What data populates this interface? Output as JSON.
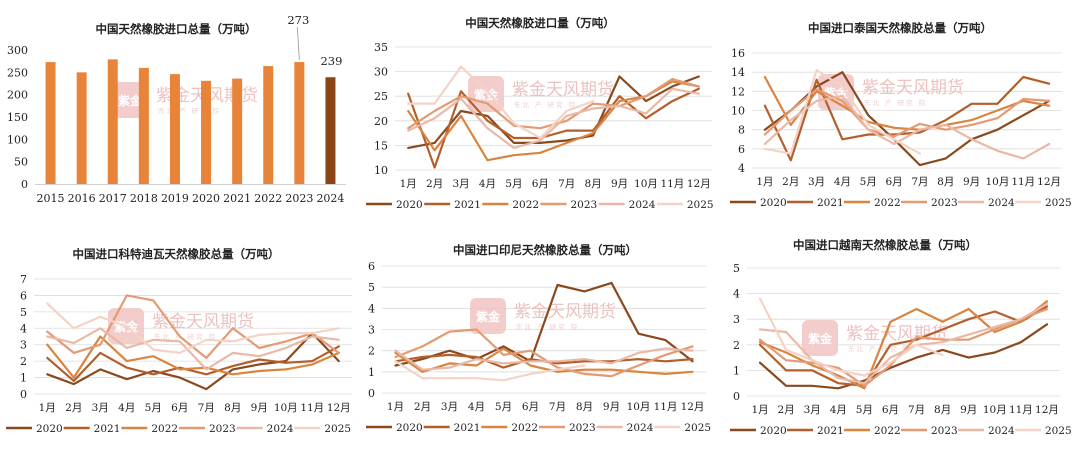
{
  "watermark": {
    "text": "紫金天风期货",
    "subtitle": "东北 产 研究 院",
    "seal": "紫金"
  },
  "months": [
    "1月",
    "2月",
    "3月",
    "4月",
    "5月",
    "6月",
    "7月",
    "8月",
    "9月",
    "10月",
    "11月",
    "12月"
  ],
  "year_colors": {
    "2020": "#8a4a1e",
    "2021": "#b45f2b",
    "2022": "#d9843f",
    "2023": "#e49a72",
    "2024": "#eab9a6",
    "2025": "#f4d3c6"
  },
  "chart_data": [
    {
      "type": "bar",
      "title": "中国天然橡胶进口总量（万吨）",
      "categories": [
        "2015",
        "2016",
        "2017",
        "2018",
        "2019",
        "2020",
        "2021",
        "2022",
        "2023",
        "2024"
      ],
      "values": [
        273,
        250,
        279,
        260,
        246,
        231,
        236,
        264,
        273,
        239
      ],
      "highlight_colors": {
        "default": "#e8833a",
        "last": "#8b4514"
      },
      "data_labels": {
        "2023": "273",
        "2024": "239"
      },
      "ylim": [
        0,
        300
      ],
      "yticks": [
        "0",
        "50",
        "100",
        "150",
        "200",
        "250",
        "300"
      ],
      "xlabel": "",
      "ylabel": "",
      "grid": false
    },
    {
      "type": "line",
      "title": "中国天然橡胶进口量（万吨）",
      "ylim": [
        10,
        35
      ],
      "yticks": [
        "10",
        "15",
        "20",
        "25",
        "30",
        "35"
      ],
      "series": [
        {
          "name": "2020",
          "values": [
            14.5,
            15.5,
            22.0,
            21.0,
            15.5,
            15.5,
            16.0,
            17.0,
            29.0,
            24.0,
            27.0,
            29.0
          ]
        },
        {
          "name": "2021",
          "values": [
            25.5,
            10.5,
            26.0,
            20.0,
            16.5,
            16.5,
            18.0,
            18.0,
            25.0,
            20.5,
            24.0,
            26.5
          ]
        },
        {
          "name": "2022",
          "values": [
            22.0,
            14.0,
            21.0,
            12.0,
            13.0,
            13.5,
            15.5,
            17.5,
            24.0,
            25.0,
            28.0,
            27.0
          ]
        },
        {
          "name": "2023",
          "values": [
            18.5,
            22.0,
            25.0,
            23.5,
            19.0,
            18.5,
            20.0,
            23.5,
            23.0,
            25.0,
            28.5,
            27.0
          ]
        },
        {
          "name": "2024",
          "values": [
            18.0,
            20.5,
            24.5,
            18.5,
            14.5,
            16.0,
            21.0,
            22.5,
            23.0,
            21.5,
            26.5,
            25.5
          ]
        },
        {
          "name": "2025",
          "values": [
            23.5,
            23.5,
            31.0,
            26.0,
            19.5,
            16.5,
            22.0,
            24.0
          ]
        }
      ]
    },
    {
      "type": "line",
      "title": "中国进口泰国天然橡胶总量（万吨）",
      "ylim": [
        4,
        16
      ],
      "yticks": [
        "4",
        "6",
        "8",
        "10",
        "12",
        "14",
        "16"
      ],
      "series": [
        {
          "name": "2020",
          "values": [
            8.0,
            10.0,
            12.5,
            14.0,
            9.5,
            7.0,
            4.3,
            5.0,
            7.0,
            8.0,
            9.5,
            11.0
          ]
        },
        {
          "name": "2021",
          "values": [
            10.5,
            4.8,
            13.2,
            7.0,
            7.5,
            7.5,
            7.7,
            9.0,
            10.7,
            10.7,
            13.5,
            12.8
          ]
        },
        {
          "name": "2022",
          "values": [
            13.5,
            8.5,
            12.0,
            10.5,
            8.8,
            8.2,
            8.0,
            8.5,
            9.0,
            10.0,
            11.0,
            10.5
          ]
        },
        {
          "name": "2023",
          "values": [
            7.5,
            10.0,
            12.2,
            11.0,
            8.0,
            7.3,
            8.6,
            8.0,
            8.5,
            9.2,
            11.2,
            11.0
          ]
        },
        {
          "name": "2024",
          "values": [
            6.5,
            9.0,
            11.0,
            11.5,
            8.0,
            6.5,
            8.0,
            8.5,
            7.0,
            5.8,
            5.0,
            6.5
          ]
        },
        {
          "name": "2025",
          "values": [
            6.0,
            5.5,
            14.2,
            12.5,
            8.5,
            7.0,
            5.5
          ]
        }
      ]
    },
    {
      "type": "line",
      "title": "中国进口科特迪瓦天然橡胶总量（万吨）",
      "ylim": [
        0,
        7
      ],
      "yticks": [
        "0",
        "1",
        "2",
        "3",
        "4",
        "5",
        "6",
        "7"
      ],
      "series": [
        {
          "name": "2020",
          "values": [
            1.2,
            0.6,
            1.5,
            0.9,
            1.4,
            1.0,
            0.3,
            1.5,
            1.8,
            2.0,
            3.7,
            2.0
          ]
        },
        {
          "name": "2021",
          "values": [
            2.2,
            0.8,
            2.5,
            1.6,
            1.2,
            1.6,
            1.2,
            1.7,
            2.1,
            1.9,
            2.0,
            2.9
          ]
        },
        {
          "name": "2022",
          "values": [
            3.0,
            1.0,
            3.5,
            2.0,
            2.3,
            1.5,
            1.6,
            1.2,
            1.4,
            1.5,
            1.8,
            2.5
          ]
        },
        {
          "name": "2023",
          "values": [
            3.8,
            2.5,
            3.0,
            6.0,
            5.7,
            3.5,
            2.2,
            4.0,
            2.8,
            3.2,
            3.7,
            2.5
          ]
        },
        {
          "name": "2024",
          "values": [
            3.5,
            3.1,
            4.0,
            2.8,
            3.3,
            3.2,
            1.5,
            2.5,
            2.3,
            2.8,
            3.5,
            3.3
          ]
        },
        {
          "name": "2025",
          "values": [
            5.5,
            4.0,
            4.7,
            4.1,
            2.7,
            2.5,
            3.3,
            3.2,
            3.6,
            3.7,
            3.7,
            4.0
          ]
        }
      ]
    },
    {
      "type": "line",
      "title": "中国进口印尼天然橡胶总量（万吨）",
      "ylim": [
        0,
        6
      ],
      "yticks": [
        "0",
        "1",
        "2",
        "3",
        "4",
        "5",
        "6"
      ],
      "series": [
        {
          "name": "2020",
          "values": [
            1.3,
            1.6,
            2.0,
            1.6,
            2.2,
            1.5,
            5.1,
            4.8,
            5.2,
            2.8,
            2.5,
            1.5
          ]
        },
        {
          "name": "2021",
          "values": [
            1.5,
            1.7,
            1.8,
            1.7,
            1.2,
            1.6,
            1.4,
            1.5,
            1.5,
            1.6,
            1.5,
            1.6
          ]
        },
        {
          "name": "2022",
          "values": [
            1.9,
            1.0,
            1.4,
            1.3,
            2.1,
            1.3,
            1.0,
            1.1,
            1.1,
            1.0,
            0.9,
            1.0
          ]
        },
        {
          "name": "2023",
          "values": [
            1.7,
            2.2,
            2.9,
            3.0,
            1.8,
            2.0,
            1.2,
            0.9,
            0.8,
            1.3,
            1.8,
            2.2
          ]
        },
        {
          "name": "2024",
          "values": [
            2.0,
            1.1,
            1.2,
            1.6,
            1.4,
            1.5,
            1.5,
            1.6,
            1.4,
            1.9,
            2.1,
            2.0
          ]
        },
        {
          "name": "2025",
          "values": [
            1.5,
            0.7,
            0.7,
            0.7,
            0.6,
            0.9,
            1.1,
            1.3
          ]
        }
      ]
    },
    {
      "type": "line",
      "title": "中国进口越南天然橡胶总量（万吨）",
      "ylim": [
        0,
        5
      ],
      "yticks": [
        "0",
        "1",
        "2",
        "3",
        "4",
        "5"
      ],
      "series": [
        {
          "name": "2020",
          "values": [
            1.3,
            0.4,
            0.4,
            0.3,
            0.6,
            1.1,
            1.5,
            1.8,
            1.5,
            1.7,
            2.1,
            2.8
          ]
        },
        {
          "name": "2021",
          "values": [
            2.0,
            1.0,
            1.0,
            0.5,
            0.4,
            2.0,
            2.2,
            2.6,
            3.0,
            3.3,
            2.9,
            3.5
          ]
        },
        {
          "name": "2022",
          "values": [
            2.1,
            1.7,
            1.2,
            0.8,
            0.3,
            2.9,
            3.4,
            2.9,
            3.4,
            2.5,
            2.9,
            3.7
          ]
        },
        {
          "name": "2023",
          "values": [
            2.2,
            1.4,
            1.3,
            1.1,
            0.4,
            1.2,
            2.3,
            2.2,
            2.2,
            2.6,
            3.0,
            3.4
          ]
        },
        {
          "name": "2024",
          "values": [
            2.6,
            2.5,
            1.4,
            0.7,
            0.5,
            1.5,
            2.0,
            2.1,
            2.4,
            2.7,
            3.0,
            3.6
          ]
        },
        {
          "name": "2025",
          "values": [
            3.8,
            1.8,
            1.4,
            1.0,
            0.8,
            1.3,
            2.0,
            1.6
          ]
        }
      ]
    }
  ]
}
